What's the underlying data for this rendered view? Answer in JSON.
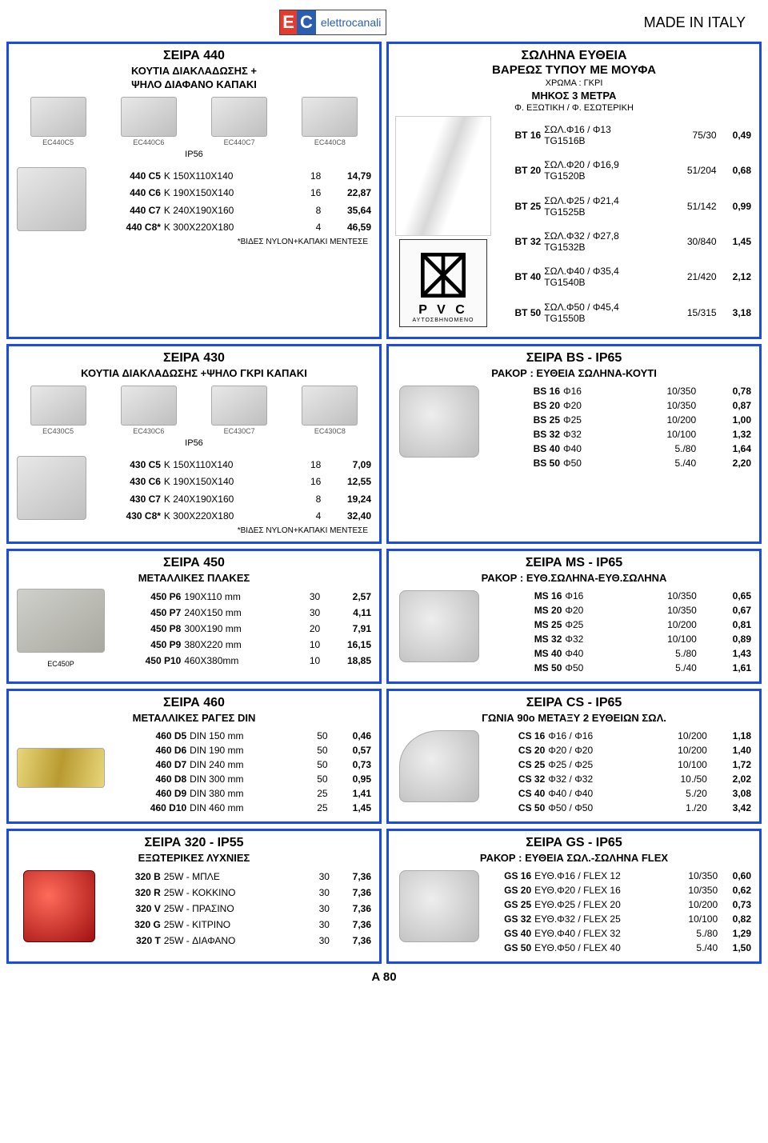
{
  "header": {
    "made": "MADE IN ITALY",
    "brand": "elettrocanali"
  },
  "footer": {
    "page": "A 80"
  },
  "blocks": [
    {
      "id": "440",
      "title": "ΣΕΙΡΑ   440",
      "subs": [
        "ΚΟΥΤΙΑ ΔΙΑΚΛΑΔΩΣΗΣ +",
        "ΨΗΛΟ ΔΙΑΦΑΝΟ ΚΑΠΑΚΙ"
      ],
      "ip": "IP56",
      "imglabels": [
        "EC440C5",
        "EC440C6",
        "EC440C7",
        "EC440C8"
      ],
      "rows": [
        [
          "440  C5",
          "K 150X110X140",
          "18",
          "14,79"
        ],
        [
          "440  C6",
          "K 190X150X140",
          "16",
          "22,87"
        ],
        [
          "440  C7",
          "K 240X190X160",
          "8",
          "35,64"
        ],
        [
          "440  C8*",
          "K 300X220X180",
          "4",
          "46,59"
        ]
      ],
      "note": "*ΒΙΔΕΣ NYLON+ΚΑΠΑΚΙ ΜΕΝΤΕΣΕ"
    },
    {
      "id": "bt",
      "title": "ΣΩΛΗΝΑ ΕΥΘΕΙΑ",
      "subs": [
        "ΒΑΡΕΩΣ ΤΥΠΟΥ ΜΕ ΜΟΥΦΑ"
      ],
      "mini": [
        "ΧΡΩΜΑ : ΓΚΡΙ",
        "ΜΗΚΟΣ 3 ΜΕΤΡΑ",
        "Φ. ΕΞΩΤΙΚΗ / Φ. ΕΣΩΤΕΡΙΚΗ"
      ],
      "rows": [
        [
          "BT 16",
          "ΣΩΛ.Φ16 / Φ13\nTG1516B",
          "75/30",
          "0,49"
        ],
        [
          "BT 20",
          "ΣΩΛ.Φ20 / Φ16,9\nTG1520B",
          "51/204",
          "0,68"
        ],
        [
          "BT 25",
          "ΣΩΛ.Φ25 / Φ21,4\nTG1525B",
          "51/142",
          "0,99"
        ],
        [
          "BT 32",
          "ΣΩΛ.Φ32 / Φ27,8\nTG1532B",
          "30/840",
          "1,45"
        ],
        [
          "BT 40",
          "ΣΩΛ.Φ40 / Φ35,4\nTG1540B",
          "21/420",
          "2,12"
        ],
        [
          "BT 50",
          "ΣΩΛ.Φ50 / Φ45,4\nTG1550B",
          "15/315",
          "3,18"
        ]
      ]
    },
    {
      "id": "430",
      "title": "ΣΕΙΡΑ   430",
      "subs": [
        "ΚΟΥΤΙΑ ΔΙΑΚΛΑΔΩΣΗΣ +ΨΗΛΟ ΓΚΡΙ ΚΑΠΑΚΙ"
      ],
      "ip": "IP56",
      "imglabels": [
        "EC430C5",
        "EC430C6",
        "EC430C7",
        "EC430C8"
      ],
      "rows": [
        [
          "430  C5",
          "K 150X110X140",
          "18",
          "7,09"
        ],
        [
          "430  C6",
          "K 190X150X140",
          "16",
          "12,55"
        ],
        [
          "430  C7",
          "K 240X190X160",
          "8",
          "19,24"
        ],
        [
          "430  C8*",
          "K 300X220X180",
          "4",
          "32,40"
        ]
      ],
      "note": "*ΒΙΔΕΣ NYLON+ΚΑΠΑΚΙ ΜΕΝΤΕΣΕ"
    },
    {
      "id": "bs",
      "title": "ΣΕΙΡΑ BS  -  IP65",
      "subs": [
        "ΡΑΚΟΡ :  ΕΥΘΕΙΑ ΣΩΛΗΝΑ-ΚΟΥΤΙ"
      ],
      "rows": [
        [
          "BS 16",
          "Φ16",
          "10/350",
          "0,78"
        ],
        [
          "BS 20",
          "Φ20",
          "10/350",
          "0,87"
        ],
        [
          "BS 25",
          "Φ25",
          "10/200",
          "1,00"
        ],
        [
          "BS 32",
          "Φ32",
          "10/100",
          "1,32"
        ],
        [
          "BS 40",
          "Φ40",
          "5./80",
          "1,64"
        ],
        [
          "BS 50",
          "Φ50",
          "5./40",
          "2,20"
        ]
      ]
    },
    {
      "id": "450",
      "title": "ΣΕΙΡΑ   450",
      "subs": [
        "ΜΕΤΑΛΛΙΚΕΣ ΠΛΑΚΕΣ"
      ],
      "rows": [
        [
          "450  P6",
          "190X110 mm",
          "30",
          "2,57"
        ],
        [
          "450  P7",
          "240X150 mm",
          "30",
          "4,11"
        ],
        [
          "450  P8",
          "300X190 mm",
          "20",
          "7,91"
        ],
        [
          "450  P9",
          "380X220 mm",
          "10",
          "16,15"
        ],
        [
          "450  P10",
          "460X380mm",
          "10",
          "18,85"
        ]
      ],
      "imglabel": "EC450P"
    },
    {
      "id": "ms",
      "title": "ΣΕΙΡΑ MS  -  IP65",
      "subs": [
        "ΡΑΚΟΡ :  ΕΥΘ.ΣΩΛΗΝΑ-ΕΥΘ.ΣΩΛΗΝΑ"
      ],
      "rows": [
        [
          "MS 16",
          "Φ16",
          "10/350",
          "0,65"
        ],
        [
          "MS 20",
          "Φ20",
          "10/350",
          "0,67"
        ],
        [
          "MS 25",
          "Φ25",
          "10/200",
          "0,81"
        ],
        [
          "MS 32",
          "Φ32",
          "10/100",
          "0,89"
        ],
        [
          "MS 40",
          "Φ40",
          "5./80",
          "1,43"
        ],
        [
          "MS 50",
          "Φ50",
          "5./40",
          "1,61"
        ]
      ]
    },
    {
      "id": "460",
      "title": "ΣΕΙΡΑ   460",
      "subs": [
        "ΜΕΤΑΛΛΙΚΕΣ ΡΑΓΕΣ DIN"
      ],
      "rows": [
        [
          "460 D5",
          "DIN 150  mm",
          "50",
          "0,46"
        ],
        [
          "460 D6",
          "DIN 190  mm",
          "50",
          "0,57"
        ],
        [
          "460 D7",
          "DIN 240  mm",
          "50",
          "0,73"
        ],
        [
          "460 D8",
          "DIN 300  mm",
          "50",
          "0,95"
        ],
        [
          "460 D9",
          "DIN 380  mm",
          "25",
          "1,41"
        ],
        [
          "460 D10",
          "DIN 460  mm",
          "25",
          "1,45"
        ]
      ]
    },
    {
      "id": "cs",
      "title": "ΣΕΙΡΑ CS  -  IP65",
      "subs": [
        "ΓΩΝΙΑ 90ο ΜΕΤΑΞΥ 2 ΕΥΘΕΙΩΝ ΣΩΛ."
      ],
      "rows": [
        [
          "CS 16",
          "Φ16 / Φ16",
          "10/200",
          "1,18"
        ],
        [
          "CS 20",
          "Φ20 / Φ20",
          "10/200",
          "1,40"
        ],
        [
          "CS 25",
          "Φ25 / Φ25",
          "10/100",
          "1,72"
        ],
        [
          "CS 32",
          "Φ32 / Φ32",
          "10./50",
          "2,02"
        ],
        [
          "CS 40",
          "Φ40 / Φ40",
          "5./20",
          "3,08"
        ],
        [
          "CS 50",
          "Φ50 / Φ50",
          "1./20",
          "3,42"
        ]
      ]
    },
    {
      "id": "320",
      "title": "ΣΕΙΡΑ 320  -  IP55",
      "subs": [
        "ΕΞΩΤΕΡΙΚΕΣ ΛΥΧΝΙΕΣ"
      ],
      "rows": [
        [
          "320 B",
          "25W - ΜΠΛΕ",
          "30",
          "7,36"
        ],
        [
          "320 R",
          "25W - ΚΟΚΚΙΝΟ",
          "30",
          "7,36"
        ],
        [
          "320 V",
          "25W - ΠΡΑΣΙΝΟ",
          "30",
          "7,36"
        ],
        [
          "320 G",
          "25W - ΚΙΤΡΙΝΟ",
          "30",
          "7,36"
        ],
        [
          "320 T",
          "25W - ΔΙΑΦΑΝΟ",
          "30",
          "7,36"
        ]
      ]
    },
    {
      "id": "gs",
      "title": "ΣΕΙΡΑ GS  -  IP65",
      "subs": [
        "ΡΑΚΟΡ : ΕΥΘΕΙΑ ΣΩΛ.-ΣΩΛΗΝΑ FLEX"
      ],
      "rows": [
        [
          "GS 16",
          "ΕΥΘ.Φ16 / FLEX 12",
          "10/350",
          "0,60"
        ],
        [
          "GS 20",
          "ΕΥΘ.Φ20 / FLEX 16",
          "10/350",
          "0,62"
        ],
        [
          "GS 25",
          "ΕΥΘ.Φ25 / FLEX 20",
          "10/200",
          "0,73"
        ],
        [
          "GS 32",
          "ΕΥΘ.Φ32 / FLEX 25",
          "10/100",
          "0,82"
        ],
        [
          "GS 40",
          "ΕΥΘ.Φ40 / FLEX 32",
          "5./80",
          "1,29"
        ],
        [
          "GS 50",
          "ΕΥΘ.Φ50 / FLEX 40",
          "5./40",
          "1,50"
        ]
      ]
    }
  ],
  "pvc": {
    "label": "P V C",
    "sub": "ΑΥΤΟΣΒΗΝΟΜΕΝΟ"
  }
}
